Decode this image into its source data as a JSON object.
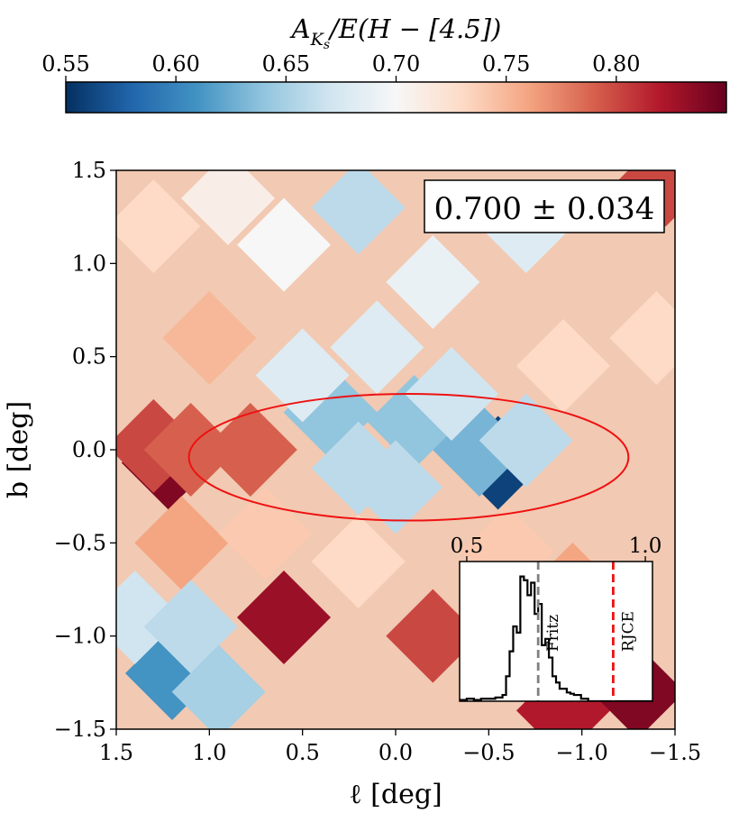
{
  "chart_data": [
    {
      "type": "heatmap",
      "title": "",
      "xlabel": "ℓ [deg]",
      "ylabel": "b [deg]",
      "xlim": [
        1.5,
        -1.5
      ],
      "ylim": [
        -1.5,
        1.5
      ],
      "x_ticks": [
        "1.5",
        "1.0",
        "0.5",
        "0.0",
        "−0.5",
        "−1.0",
        "−1.5"
      ],
      "x_tick_values": [
        1.5,
        1.0,
        0.5,
        0.0,
        -0.5,
        -1.0,
        -1.5
      ],
      "y_ticks": [
        "1.5",
        "1.0",
        "0.5",
        "0.0",
        "−0.5",
        "−1.0",
        "−1.5"
      ],
      "y_tick_values": [
        1.5,
        1.0,
        0.5,
        0.0,
        -0.5,
        -1.0,
        -1.5
      ],
      "annotation": "0.700 ± 0.034",
      "colorscale": "RdBu_r",
      "ellipse": {
        "center_l": -0.07,
        "center_b": -0.04,
        "semi_axis_l": 1.18,
        "semi_axis_b": 0.34,
        "color": "#ee1111"
      },
      "patches": [
        {
          "l": 1.22,
          "b": -0.07,
          "value": 0.84
        },
        {
          "l": 1.3,
          "b": 0.02,
          "value": 0.8
        },
        {
          "l": 1.1,
          "b": 0.0,
          "value": 0.79
        },
        {
          "l": 0.78,
          "b": 0.0,
          "value": 0.79
        },
        {
          "l": -0.55,
          "b": -0.07,
          "value": 0.56
        },
        {
          "l": -0.45,
          "b": 0.0,
          "value": 0.63
        },
        {
          "l": 0.35,
          "b": 0.2,
          "value": 0.64
        },
        {
          "l": -0.1,
          "b": 0.15,
          "value": 0.64
        },
        {
          "l": 0.2,
          "b": -0.1,
          "value": 0.66
        },
        {
          "l": 0.0,
          "b": -0.2,
          "value": 0.66
        },
        {
          "l": -0.7,
          "b": 0.05,
          "value": 0.66
        },
        {
          "l": -0.3,
          "b": 0.3,
          "value": 0.67
        },
        {
          "l": 0.5,
          "b": 0.4,
          "value": 0.68
        },
        {
          "l": 0.1,
          "b": 0.55,
          "value": 0.68
        },
        {
          "l": -0.2,
          "b": 0.9,
          "value": 0.69
        },
        {
          "l": 0.6,
          "b": 1.1,
          "value": 0.7
        },
        {
          "l": -0.7,
          "b": 1.2,
          "value": 0.68
        },
        {
          "l": -0.9,
          "b": 0.45,
          "value": 0.73
        },
        {
          "l": 1.0,
          "b": 0.6,
          "value": 0.75
        },
        {
          "l": 1.15,
          "b": -0.5,
          "value": 0.76
        },
        {
          "l": 0.7,
          "b": -0.45,
          "value": 0.74
        },
        {
          "l": 0.6,
          "b": -0.9,
          "value": 0.83
        },
        {
          "l": -0.2,
          "b": -1.0,
          "value": 0.8
        },
        {
          "l": -0.9,
          "b": -1.4,
          "value": 0.82
        },
        {
          "l": -1.3,
          "b": -1.3,
          "value": 0.84
        },
        {
          "l": 1.2,
          "b": -1.2,
          "value": 0.61
        },
        {
          "l": 1.4,
          "b": -0.9,
          "value": 0.67
        },
        {
          "l": 1.1,
          "b": -0.95,
          "value": 0.66
        },
        {
          "l": 0.95,
          "b": -1.3,
          "value": 0.65
        },
        {
          "l": -1.45,
          "b": 1.45,
          "value": 0.8
        },
        {
          "l": -1.4,
          "b": 0.6,
          "value": 0.73
        },
        {
          "l": -0.95,
          "b": -0.75,
          "value": 0.76
        },
        {
          "l": 0.2,
          "b": -0.6,
          "value": 0.73
        },
        {
          "l": -0.6,
          "b": -0.55,
          "value": 0.74
        },
        {
          "l": 1.3,
          "b": 1.2,
          "value": 0.73
        },
        {
          "l": 0.9,
          "b": 1.35,
          "value": 0.71
        },
        {
          "l": 0.2,
          "b": 1.3,
          "value": 0.66
        }
      ]
    },
    {
      "type": "colorbar",
      "label": "A_Ks / E(H − [4.5])",
      "label_parts": {
        "A": "A",
        "sub": "K",
        "subsub": "s",
        "rest": "/E(H − [4.5])"
      },
      "range": [
        0.55,
        0.85
      ],
      "ticks": [
        "0.55",
        "0.60",
        "0.65",
        "0.70",
        "0.75",
        "0.80"
      ],
      "tick_values": [
        0.55,
        0.6,
        0.65,
        0.7,
        0.75,
        0.8
      ]
    },
    {
      "type": "bar",
      "subtype": "histogram",
      "x_ticks": [
        "0.5",
        "1.0"
      ],
      "x_tick_values": [
        0.5,
        1.0
      ],
      "xlim": [
        0.48,
        1.02
      ],
      "ylim": [
        0,
        1.12
      ],
      "bin_edges": [
        0.48,
        0.5,
        0.52,
        0.54,
        0.56,
        0.58,
        0.6,
        0.61,
        0.62,
        0.63,
        0.64,
        0.65,
        0.66,
        0.67,
        0.68,
        0.69,
        0.7,
        0.71,
        0.72,
        0.73,
        0.74,
        0.75,
        0.76,
        0.77,
        0.78,
        0.79,
        0.8,
        0.82,
        0.84,
        1.02
      ],
      "counts": [
        0.01,
        0.02,
        0.01,
        0.02,
        0.02,
        0.03,
        0.05,
        0.2,
        0.4,
        0.6,
        0.55,
        1.0,
        0.97,
        0.85,
        0.95,
        0.7,
        0.78,
        0.45,
        0.5,
        0.35,
        0.2,
        0.15,
        0.1,
        0.1,
        0.07,
        0.06,
        0.05,
        0.02,
        0.0
      ],
      "vlines": [
        {
          "x": 0.7,
          "label": "Fritz",
          "color": "#808080"
        },
        {
          "x": 0.91,
          "label": "RJCE",
          "color": "#ee1111"
        }
      ]
    }
  ]
}
